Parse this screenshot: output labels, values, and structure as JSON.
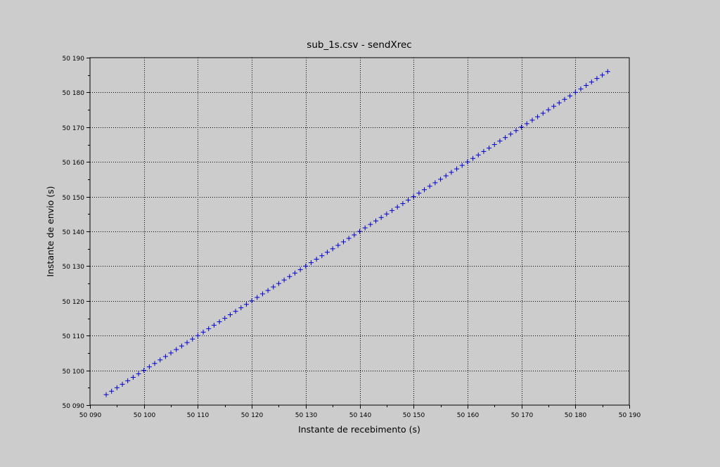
{
  "chart_data": {
    "type": "scatter",
    "title": "sub_1s.csv - sendXrec",
    "xlabel": "Instante de recebimento (s)",
    "ylabel": "Instante de envio (s)",
    "xlim": [
      50090,
      50190
    ],
    "ylim": [
      50090,
      50190
    ],
    "x_ticks": [
      50090,
      50100,
      50110,
      50120,
      50130,
      50140,
      50150,
      50160,
      50170,
      50180,
      50190
    ],
    "y_ticks": [
      50090,
      50100,
      50110,
      50120,
      50130,
      50140,
      50150,
      50160,
      50170,
      50180,
      50190
    ],
    "x_tick_labels": [
      "50 090",
      "50 100",
      "50 110",
      "50 120",
      "50 130",
      "50 140",
      "50 150",
      "50 160",
      "50 170",
      "50 180",
      "50 190"
    ],
    "y_tick_labels": [
      "50 090",
      "50 100",
      "50 110",
      "50 120",
      "50 130",
      "50 140",
      "50 150",
      "50 160",
      "50 170",
      "50 180",
      "50 190"
    ],
    "grid": true,
    "marker": "+",
    "color": "#0000cc",
    "series": [
      {
        "x": [
          50093,
          50094,
          50095,
          50096,
          50097,
          50098,
          50099,
          50100,
          50101,
          50102,
          50103,
          50104,
          50105,
          50106,
          50107,
          50108,
          50109,
          50110,
          50111,
          50112,
          50113,
          50114,
          50115,
          50116,
          50117,
          50118,
          50119,
          50120,
          50121,
          50122,
          50123,
          50124,
          50125,
          50126,
          50127,
          50128,
          50129,
          50130,
          50131,
          50132,
          50133,
          50134,
          50135,
          50136,
          50137,
          50138,
          50139,
          50140,
          50141,
          50142,
          50143,
          50144,
          50145,
          50146,
          50147,
          50148,
          50149,
          50150,
          50151,
          50152,
          50153,
          50154,
          50155,
          50156,
          50157,
          50158,
          50159,
          50160,
          50161,
          50162,
          50163,
          50164,
          50165,
          50166,
          50167,
          50168,
          50169,
          50170,
          50171,
          50172,
          50173,
          50174,
          50175,
          50176,
          50177,
          50178,
          50179,
          50180,
          50181,
          50182,
          50183,
          50184,
          50185,
          50186
        ],
        "y": [
          50093,
          50094,
          50095,
          50096,
          50097,
          50098,
          50099,
          50100,
          50101,
          50102,
          50103,
          50104,
          50105,
          50106,
          50107,
          50108,
          50109,
          50110,
          50111,
          50112,
          50113,
          50114,
          50115,
          50116,
          50117,
          50118,
          50119,
          50120,
          50121,
          50122,
          50123,
          50124,
          50125,
          50126,
          50127,
          50128,
          50129,
          50130,
          50131,
          50132,
          50133,
          50134,
          50135,
          50136,
          50137,
          50138,
          50139,
          50140,
          50141,
          50142,
          50143,
          50144,
          50145,
          50146,
          50147,
          50148,
          50149,
          50150,
          50151,
          50152,
          50153,
          50154,
          50155,
          50156,
          50157,
          50158,
          50159,
          50160,
          50161,
          50162,
          50163,
          50164,
          50165,
          50166,
          50167,
          50168,
          50169,
          50170,
          50171,
          50172,
          50173,
          50174,
          50175,
          50176,
          50177,
          50178,
          50179,
          50180,
          50181,
          50182,
          50183,
          50184,
          50185,
          50186
        ]
      }
    ]
  }
}
